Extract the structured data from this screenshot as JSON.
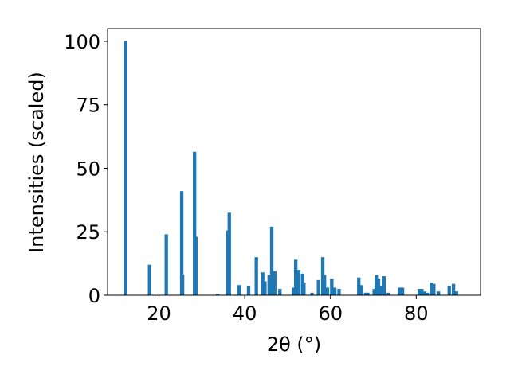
{
  "chart_data": {
    "type": "bar",
    "title": "",
    "xlabel": "2θ (°)",
    "ylabel": "Intensities (scaled)",
    "xlim": [
      8,
      95
    ],
    "ylim": [
      0,
      105
    ],
    "xticks": [
      20,
      40,
      60,
      80
    ],
    "yticks": [
      0,
      25,
      50,
      75,
      100
    ],
    "grid": false,
    "bar_width": 0.8,
    "color": "#1f77b4",
    "x": [
      12.2,
      17.8,
      21.7,
      25.3,
      25.5,
      28.3,
      28.6,
      33.7,
      36.0,
      36.4,
      38.7,
      40.9,
      42.7,
      44.2,
      44.7,
      45.7,
      46.3,
      47.0,
      48.2,
      51.4,
      51.9,
      52.6,
      53.5,
      53.8,
      55.7,
      57.2,
      58.2,
      58.6,
      59.3,
      60.3,
      61.0,
      62.0,
      66.6,
      67.2,
      68.2,
      68.7,
      70.2,
      70.7,
      71.2,
      71.8,
      72.5,
      73.5,
      76.1,
      76.8,
      80.7,
      81.3,
      81.9,
      82.6,
      83.6,
      84.1,
      85.2,
      87.7,
      88.7,
      89.4
    ],
    "values": [
      100,
      12,
      24,
      41,
      8,
      56.5,
      23,
      0.5,
      25.5,
      32.5,
      4,
      3.5,
      15,
      9,
      5.5,
      8,
      27,
      9.5,
      2.5,
      3,
      14,
      10,
      8.5,
      5,
      1,
      6,
      15,
      8,
      3,
      6.5,
      3,
      2.5,
      7,
      4,
      1,
      1,
      2.5,
      8,
      6.5,
      3.5,
      7.5,
      1,
      3,
      3,
      2.5,
      2.5,
      1.5,
      1,
      5,
      4.5,
      1.5,
      3.5,
      4.5,
      1.5
    ]
  }
}
